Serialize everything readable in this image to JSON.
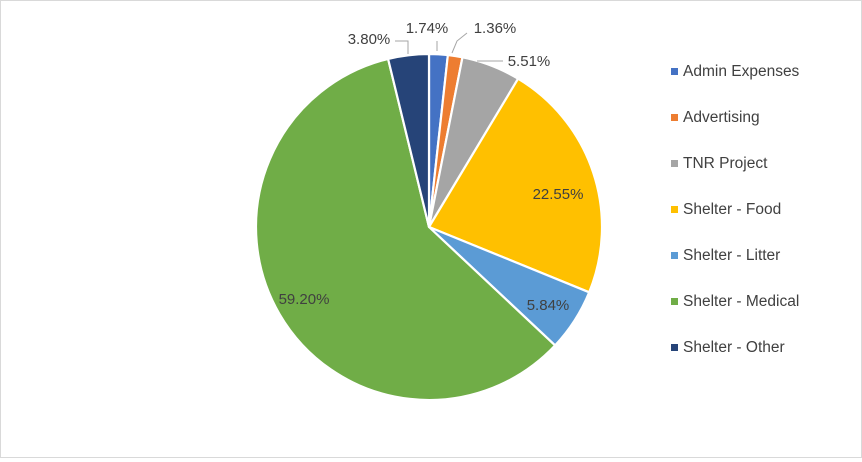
{
  "chart_data": {
    "type": "pie",
    "title": "",
    "legend_position": "right",
    "label_format": "percent",
    "slices": [
      {
        "name": "Admin Expenses",
        "value": 1.74,
        "label": "1.74%",
        "color": "#4472C4"
      },
      {
        "name": "Advertising",
        "value": 1.36,
        "label": "1.36%",
        "color": "#ED7D31"
      },
      {
        "name": "TNR Project",
        "value": 5.51,
        "label": "5.51%",
        "color": "#A5A5A5"
      },
      {
        "name": "Shelter - Food",
        "value": 22.55,
        "label": "22.55%",
        "color": "#FFC000"
      },
      {
        "name": "Shelter - Litter",
        "value": 5.84,
        "label": "5.84%",
        "color": "#5B9BD5"
      },
      {
        "name": "Shelter - Medical",
        "value": 59.2,
        "label": "59.20%",
        "color": "#70AD47"
      },
      {
        "name": "Shelter - Other",
        "value": 3.8,
        "label": "3.80%",
        "color": "#264478"
      }
    ]
  }
}
